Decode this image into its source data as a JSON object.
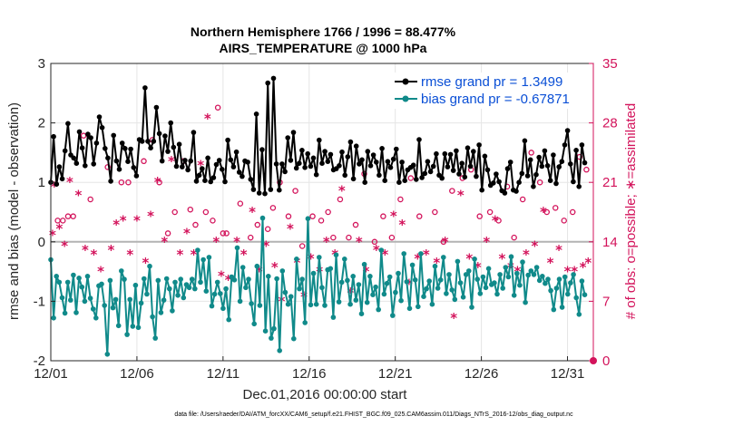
{
  "chart_data": {
    "type": "line",
    "title_line1": "Northern Hemisphere 1766 / 1996 = 88.477%",
    "title_line2": "AIRS_TEMPERATURE @ 1000 hPa",
    "xlabel": "Dec.01,2016 00:00:00 start",
    "ylabel": "rmse and bias (model - observation)",
    "ylabel_right": "# of obs: o=possible; ∗=assimilated",
    "xlim": [
      0,
      31.5
    ],
    "ylim": [
      -2,
      3
    ],
    "ylim_right": [
      0,
      35
    ],
    "x_tick_values": [
      0,
      5,
      10,
      15,
      20,
      25,
      30
    ],
    "x_tick_labels": [
      "12/01",
      "12/06",
      "12/11",
      "12/16",
      "12/21",
      "12/26",
      "12/31"
    ],
    "y_ticks": [
      -2,
      -1,
      0,
      1,
      2,
      3
    ],
    "y_ticks_right": [
      0,
      7,
      14,
      21,
      28,
      35
    ],
    "legend_position": "top-right",
    "colors": {
      "rmse": "#000000",
      "bias": "#108a8a",
      "obs": "#d3135b",
      "zero": "#b3b3b3",
      "grid": "#e6e6e6"
    },
    "series": [
      {
        "name": "rmse grand pr = 1.3499",
        "y": [
          1.0,
          1.77,
          0.97,
          1.26,
          1.06,
          1.53,
          1.99,
          1.46,
          1.41,
          1.32,
          1.85,
          1.58,
          1.28,
          1.81,
          1.75,
          1.31,
          1.66,
          2.1,
          1.92,
          1.57,
          1.41,
          1.02,
          1.79,
          1.36,
          1.22,
          1.66,
          1.57,
          1.35,
          1.56,
          1.25,
          1.11,
          1.72,
          1.69,
          2.59,
          1.69,
          1.58,
          1.69,
          2.26,
          1.82,
          1.36,
          1.78,
          1.52,
          2.0,
          1.59,
          1.27,
          1.64,
          1.26,
          1.37,
          1.21,
          1.36,
          1.84,
          1.02,
          1.12,
          1.23,
          1.03,
          1.41,
          1.01,
          1.08,
          1.3,
          1.37,
          1.22,
          1.01,
          1.71,
          1.38,
          1.26,
          1.51,
          1.17,
          1.1,
          1.36,
          1.34,
          1.05,
          0.88,
          2.15,
          0.82,
          1.55,
          0.81,
          2.67,
          0.88,
          2.75,
          1.31,
          0.87,
          1.31,
          1.18,
          1.75,
          1.37,
          1.84,
          1.24,
          1.32,
          1.54,
          1.25,
          1.48,
          1.27,
          1.41,
          1.13,
          1.71,
          1.32,
          1.52,
          1.35,
          1.47,
          1.21,
          1.23,
          1.28,
          1.51,
          1.12,
          1.43,
          1.68,
          1.06,
          1.61,
          1.31,
          1.38,
          1.0,
          1.52,
          1.28,
          1.46,
          1.34,
          1.12,
          1.57,
          1.03,
          1.35,
          1.25,
          1.39,
          1.56,
          1.0,
          1.34,
          1.03,
          1.21,
          1.25,
          1.29,
          1.05,
          1.72,
          1.08,
          1.15,
          1.35,
          1.18,
          1.27,
          1.48,
          1.12,
          1.07,
          1.48,
          1.26,
          1.47,
          1.2,
          1.53,
          1.14,
          1.32,
          1.09,
          1.58,
          1.27,
          1.52,
          1.1,
          1.63,
          0.87,
          1.44,
          1.21,
          0.95,
          0.99,
          1.14,
          1.01,
          0.86,
          0.82,
          1.23,
          1.34,
          0.87,
          0.85,
          1.0,
          1.15,
          1.7,
          1.11,
          1.38,
          0.93,
          1.13,
          1.42,
          1.27,
          1.53,
          1.28,
          1.03,
          1.46,
          0.98,
          1.26,
          1.35,
          1.63,
          1.87,
          1.31,
          1.01,
          1.54,
          0.93,
          1.63,
          1.33
        ]
      },
      {
        "name": "bias grand pr = -0.67871",
        "y": [
          -0.3,
          -1.28,
          -0.58,
          -0.68,
          -0.94,
          -1.2,
          -0.68,
          -0.98,
          -0.56,
          -1.19,
          -0.61,
          -0.76,
          -1.0,
          -0.58,
          -0.95,
          -1.13,
          -1.28,
          -0.74,
          -0.71,
          -1.07,
          -1.89,
          -0.65,
          -1.11,
          -0.97,
          -1.41,
          -0.49,
          -0.63,
          -1.56,
          -0.97,
          -1.42,
          -0.73,
          -1.44,
          -1.03,
          -0.62,
          -0.88,
          -0.41,
          -1.26,
          -1.62,
          -0.65,
          -1.19,
          -0.98,
          -0.62,
          -0.79,
          -1.16,
          -0.68,
          -0.9,
          -0.63,
          -0.94,
          -0.72,
          -0.77,
          -0.63,
          -0.79,
          -0.14,
          -0.68,
          -0.3,
          -0.83,
          -0.26,
          -1.08,
          -0.88,
          -0.68,
          -0.87,
          -1.12,
          -0.79,
          -1.31,
          -0.59,
          -0.64,
          -0.1,
          -1.0,
          -0.43,
          -0.77,
          -0.63,
          -1.04,
          -1.38,
          -0.41,
          -1.07,
          0.4,
          -1.5,
          -0.58,
          -1.62,
          -1.46,
          -0.62,
          -1.83,
          -0.49,
          -0.85,
          -1.05,
          -0.92,
          -1.63,
          -0.29,
          -0.79,
          -0.63,
          -1.36,
          0.39,
          -1.06,
          -0.53,
          -1.05,
          -0.26,
          -0.77,
          -1.07,
          -0.47,
          -0.45,
          -1.27,
          -0.22,
          -1.01,
          -0.68,
          -0.29,
          -0.65,
          -1.05,
          -0.58,
          -0.98,
          -0.72,
          -1.21,
          -0.38,
          -1.02,
          -0.58,
          -0.89,
          -0.76,
          -1.14,
          -0.14,
          -0.88,
          -0.7,
          -0.59,
          -1.24,
          -0.85,
          -0.53,
          -0.99,
          -0.2,
          -0.67,
          -1.12,
          -0.39,
          -0.64,
          -1.09,
          -0.2,
          -0.92,
          -0.79,
          -0.66,
          -1.05,
          -0.41,
          -0.78,
          -0.64,
          -0.26,
          -0.87,
          -0.55,
          -0.81,
          -0.97,
          -0.33,
          -0.69,
          -0.93,
          -0.55,
          -0.49,
          -1.1,
          -0.29,
          -0.63,
          -0.87,
          -0.59,
          -0.77,
          -0.45,
          -0.72,
          -0.69,
          -0.88,
          -0.55,
          -0.78,
          -0.43,
          -0.59,
          -0.25,
          -0.9,
          -0.53,
          -0.73,
          -0.34,
          -1.02,
          -0.56,
          -0.49,
          -0.55,
          -0.43,
          -0.65,
          -0.58,
          -0.7,
          -0.63,
          -0.82,
          -1.14,
          -0.78,
          -0.63,
          -1.1,
          -0.59,
          -0.88,
          -0.69,
          -0.55,
          -0.94,
          -1.22,
          -0.66,
          -0.89
        ]
      }
    ],
    "obs_possible": {
      "x": [
        0.4,
        0.7,
        1.0,
        1.3,
        1.9,
        2.3,
        3.3,
        4.1,
        4.5,
        5.4,
        5.9,
        6.3,
        6.8,
        7.2,
        7.7,
        8.1,
        8.4,
        9.0,
        9.4,
        9.7,
        10.0,
        10.2,
        11.0,
        11.6,
        12.0,
        12.6,
        12.9,
        13.3,
        13.8,
        14.2,
        14.6,
        15.2,
        15.7,
        16.1,
        16.4,
        16.8,
        17.3,
        17.7,
        18.2,
        18.8,
        19.3,
        19.8,
        20.3,
        20.9,
        21.4,
        22.3,
        22.8,
        23.3,
        23.9,
        24.4,
        24.9,
        25.5,
        26.0,
        26.5,
        26.9,
        27.4,
        27.9,
        28.4,
        28.8,
        29.3,
        29.8,
        30.3,
        30.7,
        31.1
      ],
      "y": [
        16.5,
        16.5,
        17.0,
        17.0,
        26.5,
        19.0,
        22.8,
        21.0,
        21.0,
        23.5,
        26.0,
        21.0,
        15.0,
        17.5,
        23.5,
        17.8,
        16.0,
        17.5,
        16.5,
        29.8,
        15.0,
        15.0,
        18.5,
        14.5,
        16.0,
        15.5,
        18.0,
        21.0,
        17.0,
        20.0,
        13.5,
        17.0,
        16.5,
        17.5,
        14.5,
        19.0,
        14.5,
        16.0,
        22.0,
        14.0,
        17.0,
        14.5,
        19.0,
        21.5,
        17.0,
        17.5,
        14.0,
        20.0,
        21.5,
        22.5,
        17.0,
        17.5,
        16.5,
        20.5,
        14.5,
        19.0,
        24.5,
        21.0,
        17.5,
        18.0,
        16.5,
        17.5,
        24.0,
        22.5
      ]
    },
    "obs_assimilated": {
      "x": [
        0.1,
        0.2,
        0.5,
        0.8,
        1.1,
        1.6,
        2.0,
        2.5,
        2.9,
        3.5,
        3.8,
        4.2,
        4.6,
        5.0,
        5.5,
        5.8,
        6.2,
        6.6,
        7.0,
        7.5,
        7.9,
        8.3,
        8.7,
        9.1,
        9.6,
        9.9,
        10.3,
        10.8,
        11.2,
        11.7,
        12.1,
        12.5,
        13.0,
        13.4,
        13.9,
        14.3,
        14.7,
        15.1,
        15.6,
        16.0,
        16.5,
        16.9,
        17.4,
        17.9,
        18.3,
        18.9,
        19.4,
        19.9,
        20.4,
        20.8,
        21.3,
        21.8,
        22.4,
        22.9,
        23.4,
        23.8,
        24.3,
        24.8,
        25.3,
        25.8,
        26.2,
        26.7,
        27.1,
        27.6,
        28.1,
        28.6,
        29.0,
        29.5,
        30.0,
        30.4,
        30.9,
        31.2
      ],
      "y": [
        14.8,
        20.5,
        15.5,
        13.5,
        21.0,
        19.5,
        13.0,
        12.5,
        10.5,
        13.0,
        16.0,
        16.5,
        12.5,
        16.5,
        11.5,
        17.0,
        21.0,
        14.0,
        23.5,
        12.5,
        15.0,
        12.5,
        23.0,
        28.5,
        14.0,
        10.0,
        9.5,
        14.0,
        12.5,
        17.5,
        10.5,
        13.5,
        11.0,
        7.0,
        15.5,
        11.5,
        7.5,
        12.0,
        10.5,
        14.0,
        12.5,
        20.0,
        8.0,
        14.0,
        10.5,
        13.0,
        12.5,
        17.0,
        16.0,
        9.0,
        12.0,
        12.5,
        11.5,
        14.0,
        5.0,
        19.5,
        12.0,
        11.0,
        14.0,
        16.5,
        12.0,
        11.0,
        10.5,
        12.5,
        13.5,
        17.5,
        11.5,
        13.0,
        10.5,
        10.5,
        11.0,
        11.5
      ]
    }
  },
  "footnote": "data file: /Users/raeder/DAI/ATM_forcXX/CAM6_setup/f.e21.FHIST_BGC.f09_025.CAM6assim.011/Diags_NTrS_2016-12/obs_diag_output.nc"
}
